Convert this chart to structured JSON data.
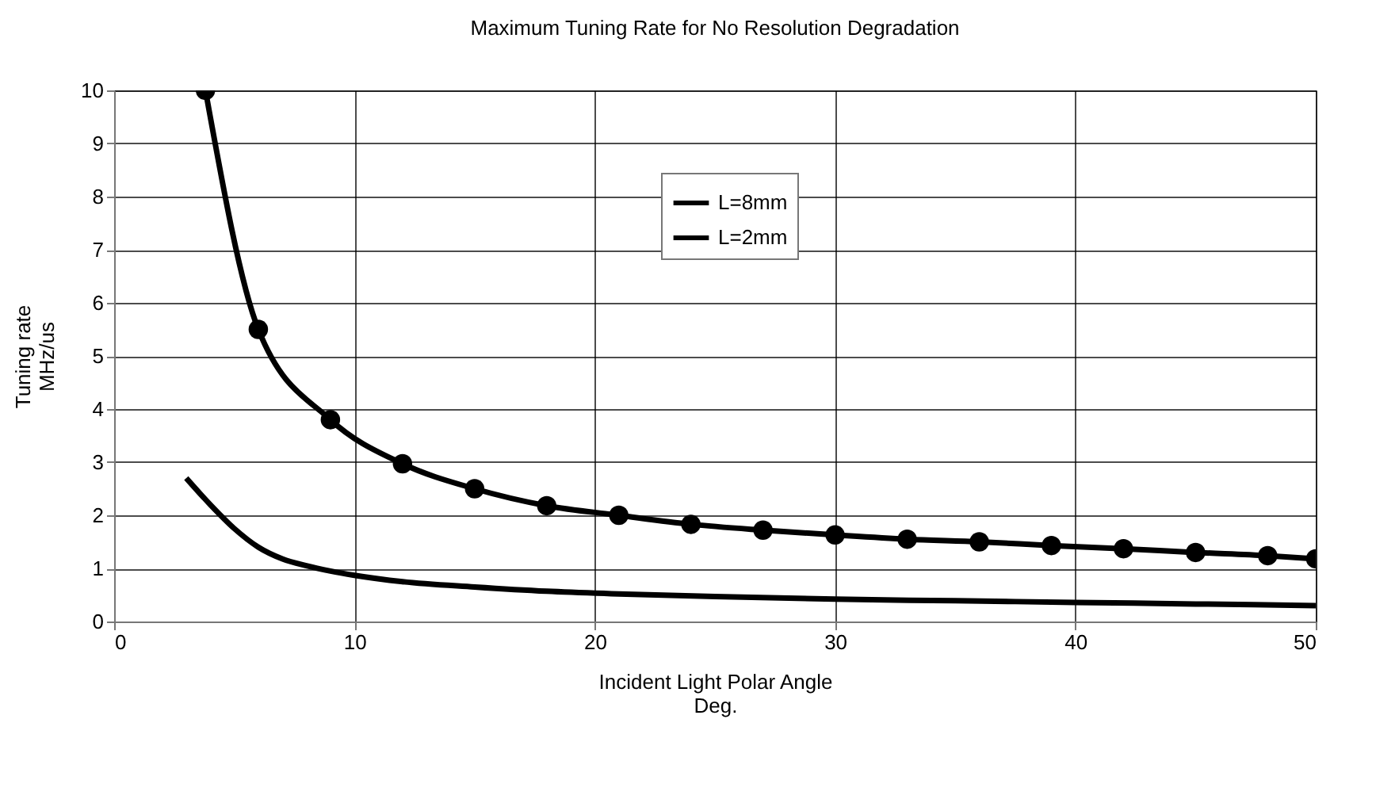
{
  "chart_data": {
    "type": "line",
    "title": "Maximum Tuning Rate for No Resolution Degradation",
    "xlabel": "Incident Light Polar Angle\nDeg.",
    "ylabel": "Tuning rate\nMHz/us",
    "xlim": [
      0,
      50
    ],
    "xticks": [
      0,
      10,
      20,
      30,
      40,
      50
    ],
    "ylim": [
      0,
      10
    ],
    "yticks": [
      0,
      1,
      2,
      3,
      4,
      5,
      6,
      7,
      8,
      9,
      10
    ],
    "grid": true,
    "legend": "top",
    "line_style": "solid",
    "series": [
      {
        "name": "L=8mm",
        "color": "#000000",
        "marker": "none",
        "x": [
          3,
          4,
          5,
          6,
          7,
          8,
          9,
          10,
          12,
          15,
          18,
          21,
          25,
          30,
          35,
          40,
          45,
          50
        ],
        "values": [
          2.7,
          2.2,
          1.75,
          1.4,
          1.18,
          1.05,
          0.95,
          0.87,
          0.75,
          0.65,
          0.57,
          0.52,
          0.47,
          0.42,
          0.39,
          0.36,
          0.33,
          0.3
        ]
      },
      {
        "name": "L=2mm",
        "color": "#000000",
        "marker": "circle",
        "x": [
          3.8,
          6,
          9,
          12,
          15,
          18,
          21,
          24,
          27,
          30,
          33,
          36,
          39,
          42,
          45,
          48,
          50
        ],
        "values": [
          10,
          5.5,
          3.8,
          2.97,
          2.5,
          2.18,
          2.0,
          1.83,
          1.72,
          1.63,
          1.55,
          1.5,
          1.43,
          1.37,
          1.3,
          1.24,
          1.18
        ]
      }
    ]
  }
}
